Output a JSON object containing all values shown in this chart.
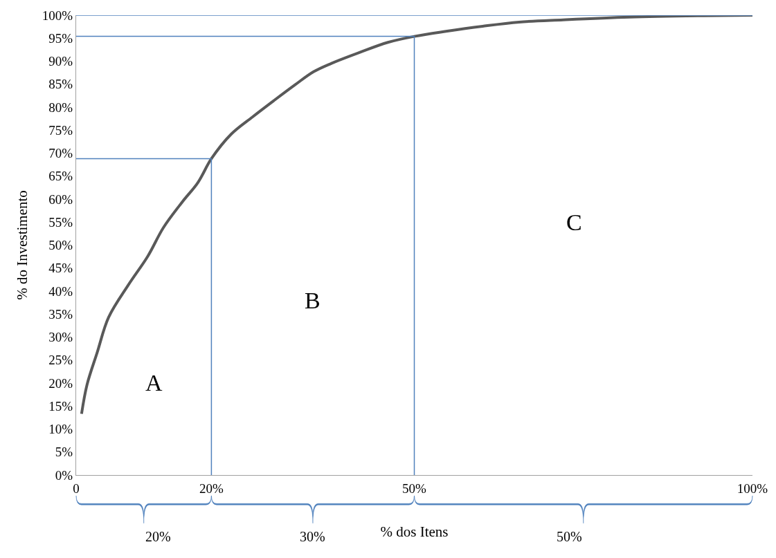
{
  "chart_data": {
    "type": "line",
    "xlabel": "% dos Itens",
    "ylabel": "% do Investimento",
    "xlim": [
      0,
      100
    ],
    "xticks": [
      {
        "value": 0,
        "label": "0"
      },
      {
        "value": 20,
        "label": "20%"
      },
      {
        "value": 50,
        "label": "50%"
      },
      {
        "value": 100,
        "label": "100%"
      }
    ],
    "ylim": [
      0,
      100
    ],
    "yticks": [
      {
        "value": 0,
        "label": "0%"
      },
      {
        "value": 5,
        "label": "5%"
      },
      {
        "value": 10,
        "label": "10%"
      },
      {
        "value": 15,
        "label": "15%"
      },
      {
        "value": 20,
        "label": "20%"
      },
      {
        "value": 25,
        "label": "25%"
      },
      {
        "value": 30,
        "label": "30%"
      },
      {
        "value": 35,
        "label": "35%"
      },
      {
        "value": 40,
        "label": "40%"
      },
      {
        "value": 45,
        "label": "45%"
      },
      {
        "value": 50,
        "label": "50%"
      },
      {
        "value": 55,
        "label": "55%"
      },
      {
        "value": 60,
        "label": "60%"
      },
      {
        "value": 65,
        "label": "65%"
      },
      {
        "value": 70,
        "label": "70%"
      },
      {
        "value": 75,
        "label": "75%"
      },
      {
        "value": 80,
        "label": "80%"
      },
      {
        "value": 85,
        "label": "85%"
      },
      {
        "value": 90,
        "label": "90%"
      },
      {
        "value": 95,
        "label": "95%"
      },
      {
        "value": 100,
        "label": "100%"
      }
    ],
    "marker": "none",
    "line_style": "solid",
    "series": [
      {
        "color": "#595959",
        "x": [
          0.8,
          1.6,
          3.1,
          4.8,
          7.7,
          10.6,
          12.9,
          15.7,
          18.0,
          20,
          22.9,
          26.1,
          29.3,
          32.4,
          35.1,
          37.7,
          41.9,
          46.1,
          50,
          54.7,
          60.1,
          65.5,
          72.0,
          81.8,
          92.6,
          100
        ],
        "values": [
          13.3,
          19.6,
          26.6,
          34.3,
          41.3,
          47.6,
          53.8,
          59.4,
          63.6,
          68.8,
          74.1,
          77.9,
          81.5,
          84.9,
          87.7,
          89.5,
          91.9,
          94.1,
          95.4,
          96.5,
          97.6,
          98.5,
          99.0,
          99.6,
          99.9,
          100
        ]
      },
      {
        "color": "#4f81bd",
        "x": [
          20,
          20
        ],
        "values": [
          0,
          68.8
        ]
      },
      {
        "color": "#4f81bd",
        "x": [
          0,
          20
        ],
        "values": [
          68.8,
          68.8
        ]
      },
      {
        "color": "#4f81bd",
        "x": [
          50,
          50
        ],
        "values": [
          0,
          95.4
        ]
      },
      {
        "color": "#4f81bd",
        "x": [
          0,
          50
        ],
        "values": [
          95.4,
          95.4
        ]
      },
      {
        "color": "#4f81bd",
        "x": [
          0,
          100
        ],
        "values": [
          100,
          100
        ]
      }
    ],
    "annotations": [
      "A",
      "B",
      "C",
      "20%",
      "30%",
      "50%"
    ]
  }
}
